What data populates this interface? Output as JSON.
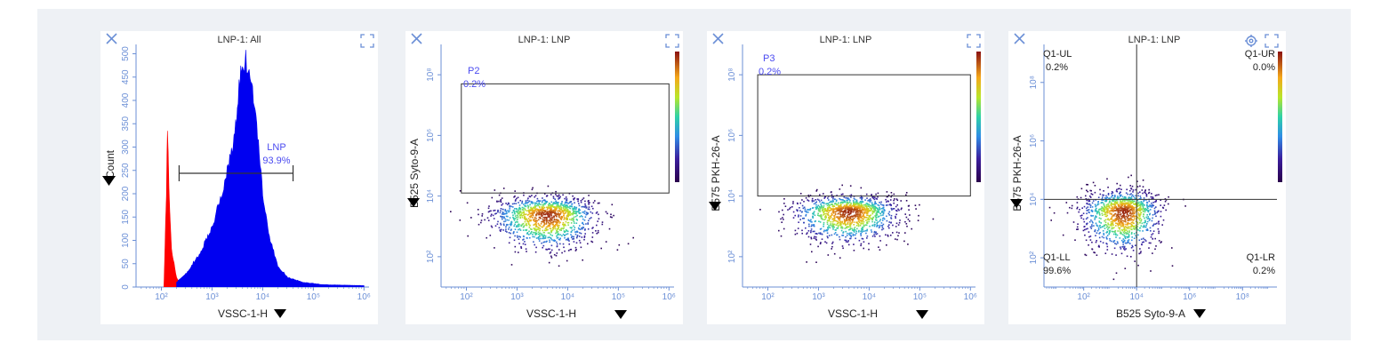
{
  "colors": {
    "histogram_main": "#0000f0",
    "histogram_debris": "#ff0000",
    "axis": "#6b8fd6",
    "gate_label": "#4a4af0"
  },
  "icons": {
    "close": "close-icon",
    "expand": "expand-icon",
    "settings": "gear-icon",
    "axis_menu": "triangle-down-icon"
  },
  "plots": [
    {
      "title": "LNP-1: All",
      "xlabel": "VSSC-1-H",
      "ylabel": "Count",
      "xticks": [
        "10²",
        "10³",
        "10⁴",
        "10⁵",
        "10⁶"
      ],
      "yticks": [
        "0",
        "50",
        "100",
        "150",
        "200",
        "250",
        "300",
        "350",
        "400",
        "450",
        "500"
      ],
      "gate": {
        "name": "LNP",
        "pct": "93.9%"
      }
    },
    {
      "title": "LNP-1: LNP",
      "xlabel": "VSSC-1-H",
      "ylabel": "B525 Syto-9-A",
      "xticks": [
        "10²",
        "10³",
        "10⁴",
        "10⁵",
        "10⁶"
      ],
      "yticks": [
        "10²",
        "10⁴",
        "10⁶",
        "10⁸"
      ],
      "gate": {
        "name": "P2",
        "pct": "0.2%"
      }
    },
    {
      "title": "LNP-1: LNP",
      "xlabel": "VSSC-1-H",
      "ylabel": "B575 PKH-26-A",
      "xticks": [
        "10²",
        "10³",
        "10⁴",
        "10⁵",
        "10⁶"
      ],
      "yticks": [
        "10²",
        "10⁴",
        "10⁶",
        "10⁸"
      ],
      "gate": {
        "name": "P3",
        "pct": "0.2%"
      }
    },
    {
      "title": "LNP-1: LNP",
      "xlabel": "B525 Syto-9-A",
      "ylabel": "B575 PKH-26-A",
      "xticks": [
        "10²",
        "10⁴",
        "10⁶",
        "10⁸"
      ],
      "yticks": [
        "10²",
        "10⁴",
        "10⁶",
        "10⁸"
      ],
      "quadrants": [
        {
          "name": "Q1-UL",
          "pct": "0.2%"
        },
        {
          "name": "Q1-UR",
          "pct": "0.0%"
        },
        {
          "name": "Q1-LL",
          "pct": "99.6%"
        },
        {
          "name": "Q1-LR",
          "pct": "0.2%"
        }
      ]
    }
  ],
  "chart_data": [
    {
      "type": "histogram",
      "title": "LNP-1: All",
      "xlabel": "VSSC-1-H",
      "ylabel": "Count",
      "xscale": "log",
      "xlim_log10": [
        1.5,
        6.1
      ],
      "ylim": [
        0,
        520
      ],
      "series": [
        {
          "name": "debris",
          "color": "#ff0000",
          "x_log10": [
            2.05,
            2.1,
            2.12,
            2.15,
            2.2,
            2.3,
            2.38
          ],
          "y": [
            0,
            200,
            345,
            200,
            80,
            20,
            5
          ]
        },
        {
          "name": "LNP",
          "color": "#0000f0",
          "x_log10": [
            2.3,
            2.5,
            2.8,
            3.0,
            3.2,
            3.4,
            3.5,
            3.55,
            3.6,
            3.65,
            3.7,
            3.8,
            3.9,
            4.0,
            4.15,
            4.3,
            4.5,
            4.8,
            5.2,
            5.6,
            6.0
          ],
          "y": [
            10,
            30,
            80,
            130,
            200,
            300,
            380,
            440,
            480,
            490,
            470,
            420,
            320,
            200,
            100,
            45,
            20,
            10,
            5,
            4,
            3
          ]
        }
      ],
      "gates": [
        {
          "name": "LNP",
          "pct": 93.9,
          "x_range_log10": [
            2.35,
            4.6
          ]
        }
      ]
    },
    {
      "type": "density-scatter",
      "title": "LNP-1: LNP",
      "xlabel": "VSSC-1-H",
      "ylabel": "B525 Syto-9-A",
      "xscale": "log",
      "yscale": "log",
      "xlim_log10": [
        1.5,
        6.1
      ],
      "ylim_log10": [
        1.0,
        9.0
      ],
      "population": {
        "center_log10": [
          3.6,
          3.4
        ],
        "spread_log10": [
          0.55,
          0.5
        ]
      },
      "gates": [
        {
          "name": "P2",
          "pct": 0.2,
          "x_range_log10": [
            1.9,
            6.0
          ],
          "y_range_log10": [
            4.1,
            7.7
          ]
        }
      ]
    },
    {
      "type": "density-scatter",
      "title": "LNP-1: LNP",
      "xlabel": "VSSC-1-H",
      "ylabel": "B575 PKH-26-A",
      "xscale": "log",
      "yscale": "log",
      "xlim_log10": [
        1.5,
        6.1
      ],
      "ylim_log10": [
        1.0,
        9.0
      ],
      "population": {
        "center_log10": [
          3.6,
          3.5
        ],
        "spread_log10": [
          0.55,
          0.45
        ]
      },
      "gates": [
        {
          "name": "P3",
          "pct": 0.2,
          "x_range_log10": [
            1.8,
            6.0
          ],
          "y_range_log10": [
            4.0,
            8.0
          ]
        }
      ]
    },
    {
      "type": "quadrant-scatter",
      "title": "LNP-1: LNP",
      "xlabel": "B525 Syto-9-A",
      "ylabel": "B575 PKH-26-A",
      "xscale": "log",
      "yscale": "log",
      "xlim_log10": [
        0.5,
        9.3
      ],
      "ylim_log10": [
        1.0,
        9.3
      ],
      "population": {
        "center_log10": [
          3.5,
          3.6
        ],
        "spread_log10": [
          0.8,
          0.6
        ]
      },
      "quadrant_split_log10": [
        4.0,
        4.0
      ],
      "quadrants": {
        "Q1-UL": 0.2,
        "Q1-UR": 0.0,
        "Q1-LL": 99.6,
        "Q1-LR": 0.2
      }
    }
  ]
}
